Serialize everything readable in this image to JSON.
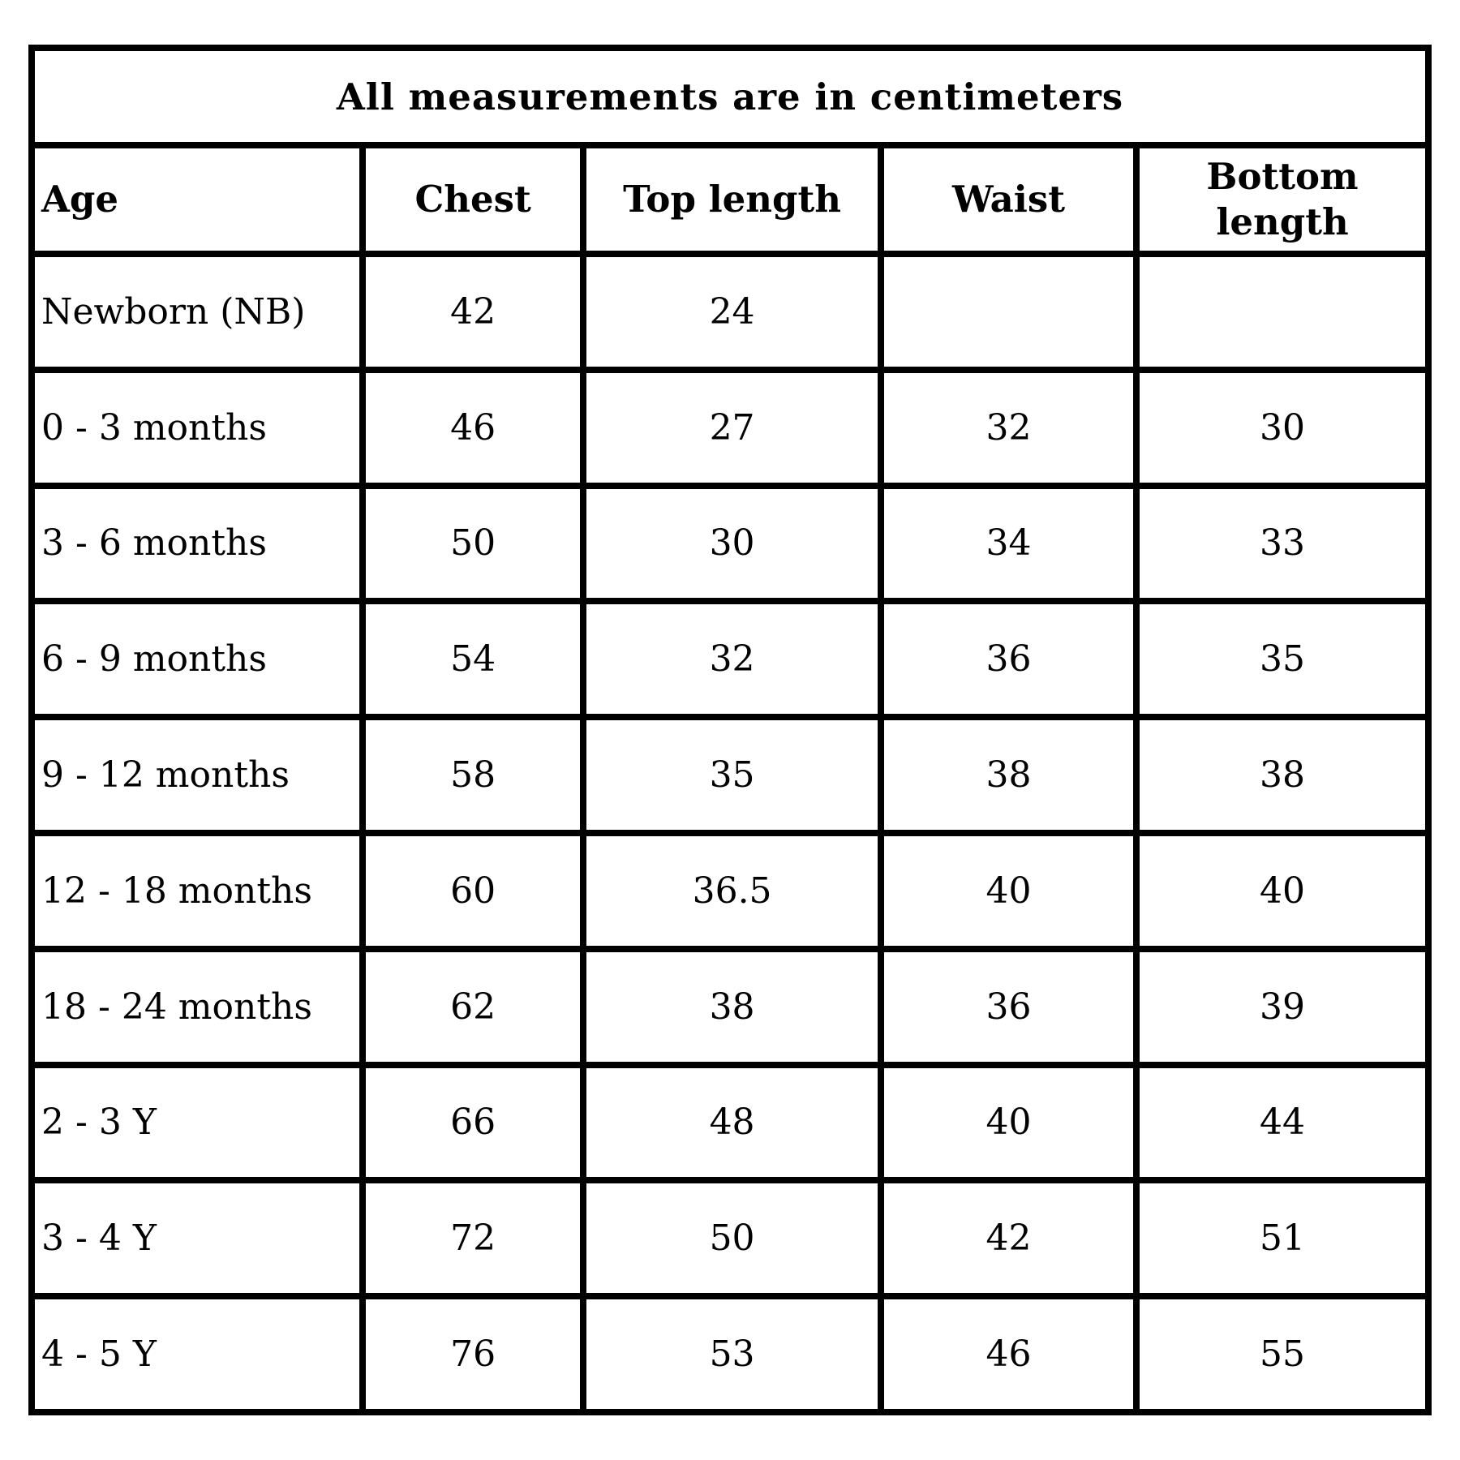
{
  "table": {
    "title": "All measurements are in centimeters",
    "unit": "centimeters",
    "columns": [
      "Age",
      "Chest",
      "Top length",
      "Waist",
      "Bottom length"
    ],
    "rows": [
      [
        "Newborn (NB)",
        "42",
        "24",
        "",
        ""
      ],
      [
        "0 - 3 months",
        "46",
        "27",
        "32",
        "30"
      ],
      [
        "3 - 6 months",
        "50",
        "30",
        "34",
        "33"
      ],
      [
        "6 - 9 months",
        "54",
        "32",
        "36",
        "35"
      ],
      [
        "9 - 12 months",
        "58",
        "35",
        "38",
        "38"
      ],
      [
        "12 - 18 months",
        "60",
        "36.5",
        "40",
        "40"
      ],
      [
        "18 - 24 months",
        "62",
        "38",
        "36",
        "39"
      ],
      [
        "2 - 3 Y",
        "66",
        "48",
        "40",
        "44"
      ],
      [
        "3 - 4 Y",
        "72",
        "50",
        "42",
        "51"
      ],
      [
        "4 - 5 Y",
        "76",
        "53",
        "46",
        "55"
      ]
    ],
    "colors": {
      "border": "#000000",
      "background": "#ffffff",
      "text": "#000000"
    }
  }
}
